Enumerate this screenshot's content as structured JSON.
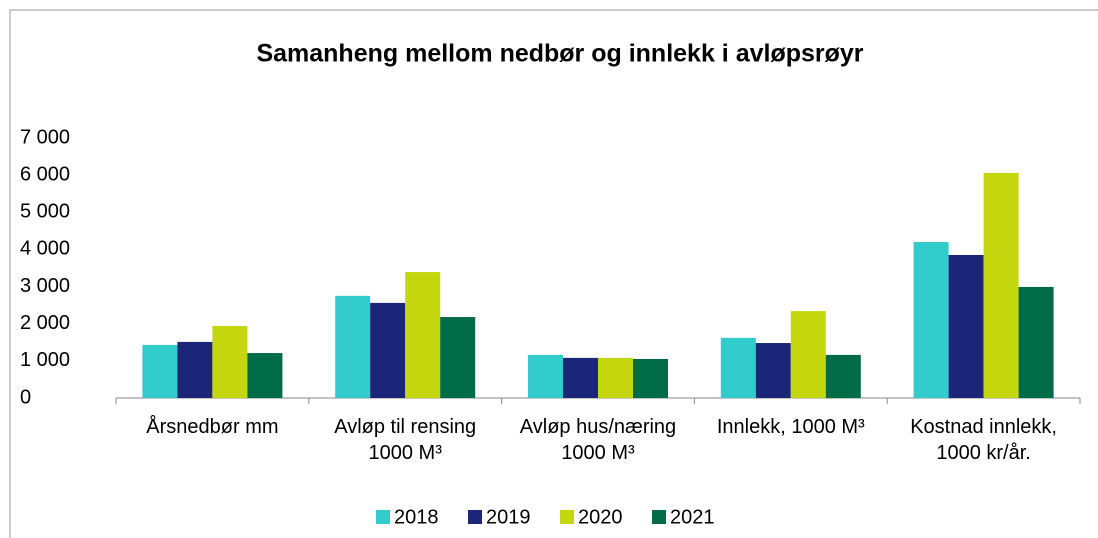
{
  "chart_data": {
    "type": "bar",
    "title": "Samanheng mellom nedbør og innlekk i avløpsrøyr",
    "categories": [
      "Årsnedbør mm",
      "Avløp til rensing\n1000 M³",
      "Avløp hus/næring\n1000 M³",
      "Innlekk, 1000 M³",
      "Kostnad innlekk,\n1000 kr/år."
    ],
    "series": [
      {
        "name": "2018",
        "color": "#33cccc",
        "values": [
          1430,
          2750,
          1160,
          1620,
          4200
        ]
      },
      {
        "name": "2019",
        "color": "#1c2678",
        "values": [
          1510,
          2560,
          1080,
          1480,
          3850
        ]
      },
      {
        "name": "2020",
        "color": "#c4d60e",
        "values": [
          1940,
          3390,
          1080,
          2340,
          6060
        ]
      },
      {
        "name": "2021",
        "color": "#006b47",
        "values": [
          1210,
          2180,
          1050,
          1160,
          2990
        ]
      }
    ],
    "ylim": [
      0,
      7000
    ],
    "yticks": [
      0,
      {
        "value": 1000,
        "label": "1 000"
      },
      {
        "value": 2000,
        "label": "2 000"
      },
      {
        "value": 3000,
        "label": "3 000"
      },
      {
        "value": 4000,
        "label": "4 000"
      },
      {
        "value": 5000,
        "label": "5 000"
      },
      {
        "value": 6000,
        "label": "6 000"
      },
      {
        "value": 7000,
        "label": "7 000"
      }
    ],
    "grid": false,
    "legend": "bottom"
  }
}
